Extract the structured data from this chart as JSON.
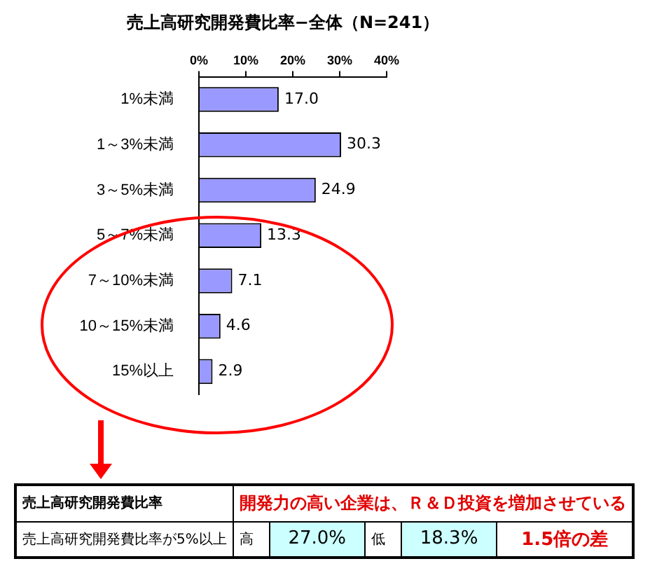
{
  "chart_data": {
    "type": "bar",
    "orientation": "horizontal",
    "title": "売上高研究開発費比率−全体（N=241）",
    "categories": [
      "1%未満",
      "1～3%未満",
      "3～5%未満",
      "5～7%未満",
      "7～10%未満",
      "10～15%未満",
      "15%以上"
    ],
    "values": [
      17.0,
      30.3,
      24.9,
      13.3,
      7.1,
      4.6,
      2.9
    ],
    "color": "#9999ff",
    "xlim": [
      0,
      40
    ],
    "xticks": [
      {
        "value": 0,
        "label": "0%"
      },
      {
        "value": 10,
        "label": "10%"
      },
      {
        "value": 20,
        "label": "20%"
      },
      {
        "value": 30,
        "label": "30%"
      },
      {
        "value": 40,
        "label": "40%"
      }
    ],
    "value_labels": [
      "17.0",
      "30.3",
      "24.9",
      "13.3",
      "7.1",
      "4.6",
      "2.9"
    ],
    "annotations": [
      "売上高研究開発費比率",
      "開発力の高い企業は、Ｒ＆Ｄ投資を増加させている",
      "売上高研究開発費比率が5%以上",
      "高",
      "27.0%",
      "低",
      "18.3%",
      "1.5倍の差"
    ]
  }
}
